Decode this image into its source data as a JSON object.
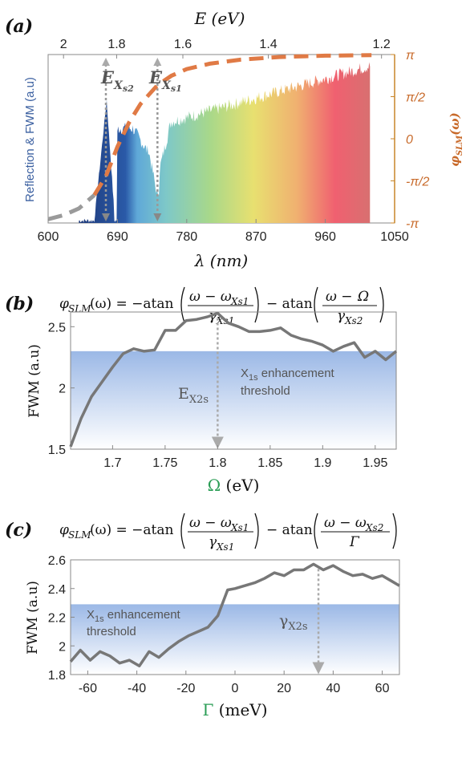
{
  "panel_a": {
    "label": "(a)",
    "top_axis_title": "E (eV)",
    "xlabel": "λ (nm)",
    "ylabel_left": "Reflection & FWM (a.u)",
    "ylabel_right": "φSLM(ω)",
    "annotations": {
      "ex_s2": "EXs2",
      "ex_s1": "EXs1"
    },
    "colors": {
      "phase_curve": "#e07a45",
      "left_label": "#3a5fa0",
      "right_label": "#c86a2a",
      "markers": "#999999"
    },
    "chart_data": {
      "type": "area",
      "x_ticks": [
        600,
        690,
        780,
        870,
        960,
        1050
      ],
      "top_ticks": [
        "2",
        "1.8",
        "1.6",
        "1.4",
        "1.2"
      ],
      "top_tick_values_nm": [
        620,
        689,
        775,
        886,
        1033
      ],
      "right_ticks": [
        "π",
        "π/2",
        "0",
        "-π/2",
        "-π"
      ],
      "xlim": [
        600,
        1050
      ],
      "markers_nm": [
        675,
        742
      ],
      "phase_curve": {
        "x": [
          600,
          620,
          640,
          660,
          675,
          690,
          705,
          720,
          742,
          760,
          780,
          810,
          850,
          900,
          960,
          1020
        ],
        "y": [
          -3.0,
          -2.85,
          -2.6,
          -2.1,
          -1.4,
          -0.3,
          0.6,
          1.3,
          2.0,
          2.35,
          2.6,
          2.8,
          2.95,
          3.05,
          3.1,
          3.12
        ]
      }
    }
  },
  "panel_b": {
    "label": "(b)",
    "equation": {
      "lhs": "φ",
      "lhs_sub": "SLM",
      "mid": "(ω) = −atan",
      "num1": "ω − ω",
      "num1_sub": "Xs1",
      "den1": "γ",
      "den1_sub": "Xs1",
      "mid2": "− atan",
      "num2_a": "ω − ",
      "num2_b": "Ω",
      "den2": "γ",
      "den2_sub": "Xs2"
    },
    "threshold_text_1": "X1s enhancement",
    "threshold_text_1_main": "X",
    "threshold_text_1_sub": "1s",
    "threshold_text_1_rest": " enhancement",
    "threshold_text_2": "threshold",
    "marker_label_main": "E",
    "marker_label_sub": "X2s",
    "xlabel_sym": "Ω",
    "xlabel_unit": " (eV)",
    "ylabel": "FWM (a.u)",
    "chart_data": {
      "type": "line",
      "xlim": [
        1.66,
        1.97
      ],
      "ylim": [
        1.5,
        2.62
      ],
      "threshold": 2.3,
      "x_ticks": [
        1.7,
        1.75,
        1.8,
        1.85,
        1.9,
        1.95
      ],
      "y_ticks": [
        1.5,
        2,
        2.5
      ],
      "marker_x": 1.8,
      "x": [
        1.66,
        1.67,
        1.68,
        1.69,
        1.7,
        1.71,
        1.72,
        1.73,
        1.74,
        1.75,
        1.76,
        1.77,
        1.78,
        1.79,
        1.8,
        1.81,
        1.82,
        1.83,
        1.84,
        1.85,
        1.86,
        1.87,
        1.88,
        1.89,
        1.9,
        1.91,
        1.92,
        1.93,
        1.94,
        1.95,
        1.96,
        1.97
      ],
      "y": [
        1.52,
        1.75,
        1.93,
        2.05,
        2.17,
        2.28,
        2.32,
        2.3,
        2.31,
        2.47,
        2.47,
        2.55,
        2.56,
        2.58,
        2.61,
        2.53,
        2.5,
        2.46,
        2.46,
        2.47,
        2.49,
        2.43,
        2.4,
        2.38,
        2.35,
        2.3,
        2.34,
        2.37,
        2.25,
        2.3,
        2.23,
        2.3
      ]
    }
  },
  "panel_c": {
    "label": "(c)",
    "equation": {
      "lhs": "φ",
      "lhs_sub": "SLM",
      "mid": "(ω) = −atan",
      "num1": "ω − ω",
      "num1_sub": "Xs1",
      "den1": "γ",
      "den1_sub": "Xs1",
      "mid2": "− atan",
      "num2": "ω − ω",
      "num2_sub": "Xs2",
      "den2": "Γ"
    },
    "threshold_text_1_main": "X",
    "threshold_text_1_sub": "1s",
    "threshold_text_1_rest": " enhancement",
    "threshold_text_2": "threshold",
    "marker_label_main": "γ",
    "marker_label_sub": "X2s",
    "xlabel_sym": "Γ",
    "xlabel_unit": " (meV)",
    "ylabel": "FWM (a.u)",
    "chart_data": {
      "type": "line",
      "xlim": [
        -67,
        67
      ],
      "ylim": [
        1.8,
        2.6
      ],
      "threshold": 2.29,
      "x_ticks": [
        -60,
        -40,
        -20,
        0,
        20,
        40,
        60
      ],
      "y_ticks": [
        1.8,
        2,
        2.2,
        2.4,
        2.6
      ],
      "marker_x": 34,
      "x": [
        -67,
        -63,
        -59,
        -55,
        -51,
        -47,
        -43,
        -39,
        -35,
        -31,
        -27,
        -23,
        -19,
        -15,
        -11,
        -7,
        -3,
        0,
        4,
        8,
        12,
        16,
        20,
        24,
        28,
        32,
        36,
        40,
        44,
        48,
        52,
        56,
        60,
        64,
        67
      ],
      "y": [
        1.89,
        1.97,
        1.9,
        1.96,
        1.93,
        1.88,
        1.9,
        1.86,
        1.96,
        1.92,
        1.98,
        2.03,
        2.07,
        2.1,
        2.13,
        2.21,
        2.39,
        2.4,
        2.42,
        2.44,
        2.47,
        2.51,
        2.49,
        2.53,
        2.53,
        2.57,
        2.53,
        2.56,
        2.52,
        2.49,
        2.5,
        2.47,
        2.49,
        2.45,
        2.42
      ]
    }
  }
}
